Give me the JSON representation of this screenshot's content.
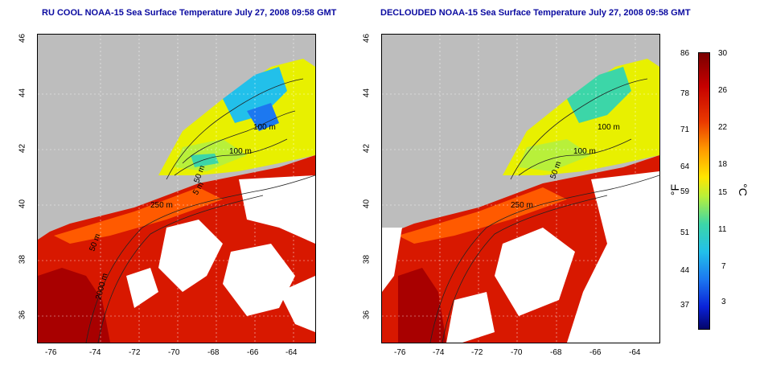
{
  "titles": {
    "left": "RU COOL NOAA-15 Sea Surface Temperature July 27, 2008 09:58 GMT",
    "right": "DECLOUDED NOAA-15 Sea Surface Temperature July 27, 2008 09:58 GMT"
  },
  "axes": {
    "x_ticks": [
      "-76",
      "-74",
      "-72",
      "-70",
      "-68",
      "-66",
      "-64"
    ],
    "y_ticks": [
      "46",
      "44",
      "42",
      "40",
      "38",
      "36"
    ]
  },
  "contour_labels": [
    "100 m",
    "100 m",
    "50 m",
    "250 m",
    "5 m",
    "50 m",
    "2000 m"
  ],
  "contour_labels_right": [
    "100 m",
    "100 m",
    "50 m",
    "250 m"
  ],
  "colorbar": {
    "fahrenheit_unit": "°F",
    "celsius_unit": "°C",
    "fahrenheit_ticks": [
      "86",
      "78",
      "71",
      "64",
      "59",
      "51",
      "44",
      "37"
    ],
    "celsius_ticks": [
      "30",
      "26",
      "22",
      "18",
      "15",
      "11",
      "7",
      "3"
    ]
  },
  "colors": {
    "land": "#bdbdbd",
    "cloud": "#ffffff",
    "warm": "#d81800",
    "cool": "#22c0ea",
    "title": "#0a0aa0"
  }
}
